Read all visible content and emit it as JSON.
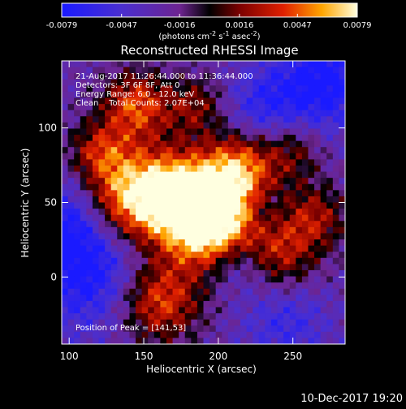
{
  "footer_timestamp": "10-Dec-2017 19:20",
  "chart_data": {
    "type": "heatmap",
    "title": "Reconstructed RHESSI Image",
    "xlabel": "Heliocentric X (arcsec)",
    "ylabel": "Heliocentric Y (arcsec)",
    "xlim": [
      95,
      285
    ],
    "ylim": [
      -45,
      145
    ],
    "xticks": [
      100,
      150,
      200,
      250
    ],
    "yticks": [
      0,
      50,
      100
    ],
    "colorbar": {
      "range": [
        -0.0079,
        0.0079
      ],
      "ticks": [
        "-0.0079",
        "-0.0047",
        "-0.0016",
        "0.0016",
        "0.0047",
        "0.0079"
      ],
      "ticks_values": [
        -0.0079,
        -0.0047,
        -0.0016,
        0.0016,
        0.0047,
        0.0079
      ],
      "label": "(photons cm-2 s-1 asec-2)"
    },
    "annotations": [
      "21-Aug-2017 11:26:44.000 to 11:36:44.000",
      "Detectors: 3F 6F 8F, Att 0",
      "Energy Range: 6.0 - 12.0 keV",
      "Clean    Total Counts: 2.07E+04"
    ],
    "peak_label": "Position of Peak = [141,53]",
    "peak": [
      141,
      53
    ],
    "grid": false
  }
}
